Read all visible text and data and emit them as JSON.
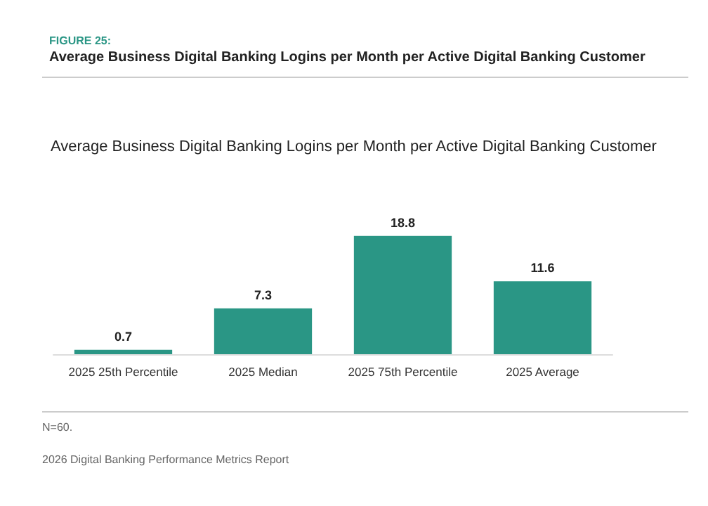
{
  "chart_data": {
    "type": "bar",
    "subtitle": "FIGURE 25:",
    "title": "Average Business Digital Banking Logins per Month per Active Digital Banking Customer",
    "categories": [
      "2025 25th Percentile",
      "2025 Median",
      "2025 75th Percentile",
      "2025 Average"
    ],
    "values": [
      0.7,
      7.3,
      18.8,
      11.6
    ],
    "color": "#2a9685",
    "data_labels": true,
    "annotations": [
      "Average Business Digital Banking Logins per Month per Active Digital Banking Customer",
      "N=60.",
      "2026 Digital Banking Performance Metrics Report"
    ]
  }
}
